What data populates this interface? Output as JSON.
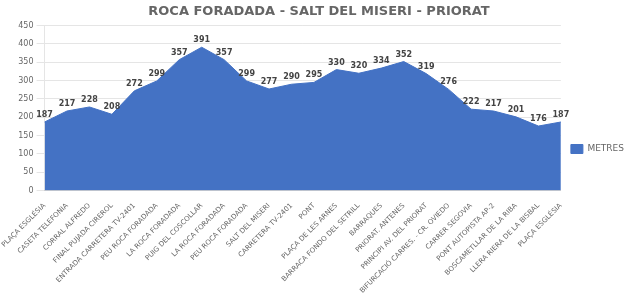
{
  "chart_data": {
    "type": "area",
    "title": "ROCA FORADADA - SALT DEL MISERI - PRIORAT",
    "categories": [
      "PLAÇA ESGLÉSIA",
      "CASETA TELEFONIA",
      "CORRAL ALFREDO",
      "FINAL PUJADA CIREROL",
      "ENTRADA CARRETERA TV-2401",
      "PEU ROCA FORADADA",
      "LA ROCA FORADADA",
      "PUIG DEL COSCOLLAR",
      "LA ROCA FORADADA",
      "PEU ROCA FORADADA",
      "SALT DEL MISERI",
      "CARRETERA TV-2401",
      "PONT",
      "PLAÇA DE LES ARNES",
      "BARRACA FONDO DEL SETRILL",
      "BARRAQUES",
      "PRIORAT. ANTENES",
      "PRINCIPI AV. DEL PRIORAT",
      "BIFURCACIÓ CARRES. - CR. OVIEDO",
      "CARRER SEGOVIA",
      "PONT AUTOPISTA AP-2",
      "BOSCAMETLLAR DE LA RIBA",
      "LLERA RIERA DE LA BISBAL",
      "PLAÇA ESGLÉSIA"
    ],
    "series": [
      {
        "name": "METRES",
        "color": "#4472c4",
        "values": [
          187,
          217,
          228,
          208,
          272,
          299,
          357,
          391,
          357,
          299,
          277,
          290,
          295,
          330,
          320,
          334,
          352,
          319,
          276,
          222,
          217,
          201,
          176,
          187
        ]
      }
    ],
    "ylim": [
      0,
      450
    ],
    "yticks": [
      0,
      50,
      100,
      150,
      200,
      250,
      300,
      350,
      400,
      450
    ],
    "grid": true,
    "legend": "right",
    "data_labels": true
  }
}
